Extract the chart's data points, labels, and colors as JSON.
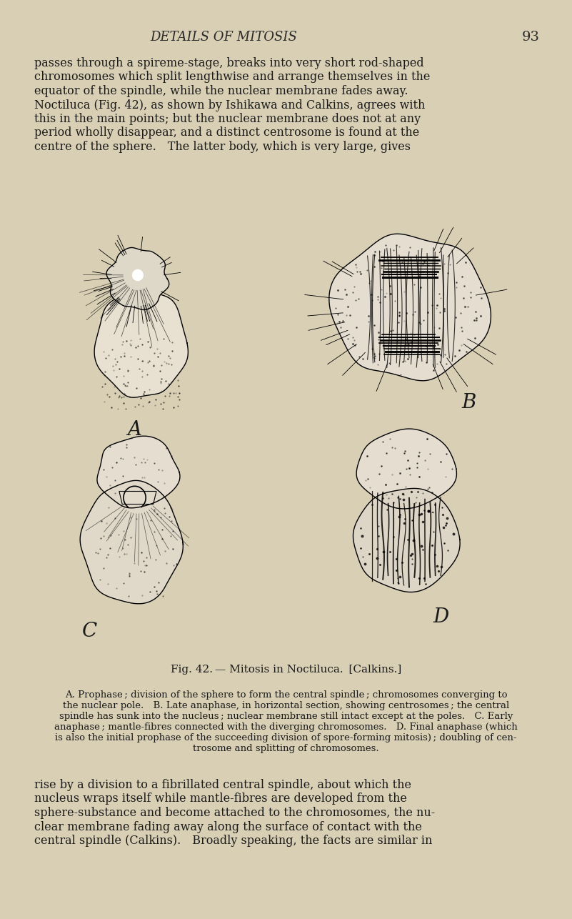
{
  "page_background": "#d8cfb4",
  "header_text": "DETAILS OF MITOSIS",
  "page_number": "93",
  "top_paragraph": "passes through a spireme-stage, breaks into very short rod-shaped\nchromosomes which split lengthwise and arrange themselves in the\nequator of the spindle, while the nuclear membrane fades away.\nNoctiluca (Fig. 42), as shown by Ishikawa and Calkins, agrees with\nthis in the main points; but the nuclear membrane does not at any\nperiod wholly disappear, and a distinct centrosome is found at the\ncentre of the sphere. The latter body, which is very large, gives",
  "figure_caption_main": "Fig. 42. — Mitosis in Noctiluca.  [Calkins.]",
  "figure_caption_detail": "A. Prophase ; division of the sphere to form the central spindle ; chromosomes converging to\nthe nuclear pole. B. Late anaphase, in horizontal section, showing centrosomes ; the central\nspindle has sunk into the nucleus ; nuclear membrane still intact except at the poles. C. Early\nanaphase ; mantle-fibres connected with the diverging chromosomes. D. Final anaphase (which\nis also the initial prophase of the succeeding division of spore-forming mitosis) ; doubling of cen-\ntrosome and splitting of chromosomes.",
  "bottom_paragraph": "rise by a division to a fibrillated central spindle, about which the\nnucleus wraps itself while mantle-fibres are developed from the\nsphere-substance and become attached to the chromosomes, the nu-\nclear membrane fading away along the surface of contact with the\ncentral spindle (Calkins). Broadly speaking, the facts are similar in",
  "label_A": "A",
  "label_B": "B",
  "label_C": "C",
  "label_D": "D",
  "image_path": null,
  "text_color": "#1a1a1a",
  "header_color": "#2a2a2a",
  "font_size_header": 13,
  "font_size_body": 11.5,
  "font_size_caption_main": 11,
  "font_size_caption_detail": 9.5,
  "font_size_label": 20
}
